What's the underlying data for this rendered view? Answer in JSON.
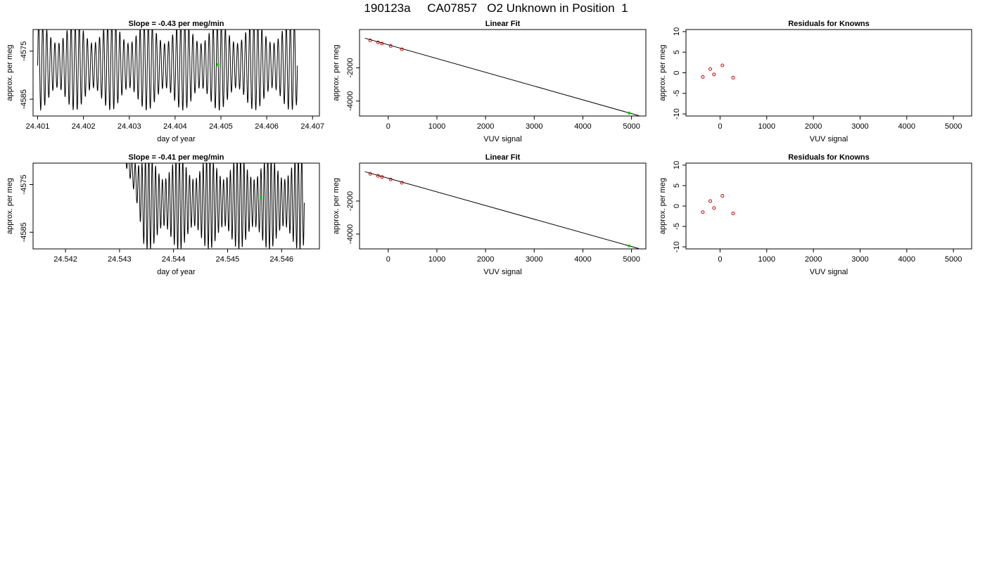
{
  "page_title": "190123a     CA07857   O2 Unknown in Position  1",
  "colors": {
    "trace": "#000000",
    "known": "#cc0000",
    "unknown": "#00cc00"
  },
  "chart_data": [
    {
      "type": "line",
      "title": "Slope =  -0.43  per meg/min",
      "xlabel": "day of year",
      "ylabel": "approx. per meg",
      "xlim": [
        24.4009,
        24.40715
      ],
      "ylim": [
        -4588.5,
        -4570.5
      ],
      "xticks": [
        "24.401",
        "24.402",
        "24.403",
        "24.404",
        "24.405",
        "24.406",
        "24.407"
      ],
      "yticks": [
        "-4575",
        "-4585"
      ],
      "trace": {
        "start": 24.401,
        "end": 24.40667,
        "center": -4578.0,
        "amplitude": 8.5,
        "cycles": 64
      },
      "unknown_point": {
        "x": 24.40493,
        "y": -4577.8
      }
    },
    {
      "type": "scatter",
      "title": "Linear Fit",
      "xlabel": "VUV signal",
      "ylabel": "approx. per meg",
      "xlim": [
        -590,
        5295
      ],
      "ylim": [
        -4900,
        300
      ],
      "xticks": [
        "0",
        "1000",
        "2000",
        "3000",
        "4000",
        "5000"
      ],
      "yticks": [
        "-2000",
        "-4000"
      ],
      "fit_line": {
        "x": [
          -480,
          5150
        ],
        "y": [
          -220,
          -4880
        ]
      },
      "knowns": {
        "x": [
          -370,
          -210,
          -130,
          50,
          280
        ],
        "y": [
          -350,
          -470,
          -540,
          -690,
          -890
        ]
      },
      "unknown": {
        "x": 4950,
        "y": -4720
      }
    },
    {
      "type": "scatter",
      "title": "Residuals for Knowns",
      "xlabel": "VUV signal",
      "ylabel": "approx. per meg",
      "xlim": [
        -730,
        5390
      ],
      "ylim": [
        -10.5,
        10.5
      ],
      "xticks": [
        "0",
        "1000",
        "2000",
        "3000",
        "4000",
        "5000"
      ],
      "yticks": [
        "-10",
        "-5",
        "0",
        "5",
        "10"
      ],
      "residuals": {
        "x": [
          -370,
          -210,
          -130,
          50,
          280
        ],
        "y": [
          -1.0,
          0.9,
          -0.4,
          1.8,
          -1.2
        ]
      }
    },
    {
      "type": "line",
      "title": "Slope =  -0.41  per meg/min",
      "xlabel": "day of year",
      "ylabel": "approx. per meg",
      "xlim": [
        24.5414,
        24.5467
      ],
      "ylim": [
        -4588.5,
        -4570.5
      ],
      "xticks": [
        "24.542",
        "24.543",
        "24.544",
        "24.545",
        "24.546"
      ],
      "yticks": [
        "-4575",
        "-4585"
      ],
      "trace": {
        "start": 24.54296,
        "end": 24.54642,
        "center": -4578.8,
        "amplitude": 9.0,
        "cycles": 55,
        "ramp_end": 24.54345
      },
      "unknown_point": {
        "x": 24.54562,
        "y": -4577.7
      }
    },
    {
      "type": "scatter",
      "title": "Linear Fit",
      "xlabel": "VUV signal",
      "ylabel": "approx. per meg",
      "xlim": [
        -590,
        5295
      ],
      "ylim": [
        -4900,
        300
      ],
      "xticks": [
        "0",
        "1000",
        "2000",
        "3000",
        "4000",
        "5000"
      ],
      "yticks": [
        "-2000",
        "-4000"
      ],
      "fit_line": {
        "x": [
          -480,
          5150
        ],
        "y": [
          -220,
          -4880
        ]
      },
      "knowns": {
        "x": [
          -370,
          -210,
          -130,
          50,
          280
        ],
        "y": [
          -350,
          -470,
          -540,
          -690,
          -890
        ]
      },
      "unknown": {
        "x": 4950,
        "y": -4720
      }
    },
    {
      "type": "scatter",
      "title": "Residuals for Knowns",
      "xlabel": "VUV signal",
      "ylabel": "approx. per meg",
      "xlim": [
        -730,
        5390
      ],
      "ylim": [
        -10.5,
        10.5
      ],
      "xticks": [
        "0",
        "1000",
        "2000",
        "3000",
        "4000",
        "5000"
      ],
      "yticks": [
        "-10",
        "-5",
        "0",
        "5",
        "10"
      ],
      "residuals": {
        "x": [
          -370,
          -210,
          -130,
          50,
          280
        ],
        "y": [
          -1.5,
          1.2,
          -0.5,
          2.5,
          -1.8
        ]
      }
    }
  ]
}
